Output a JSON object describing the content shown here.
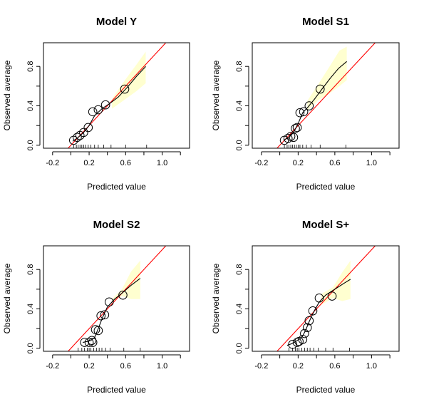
{
  "chart_data": [
    {
      "type": "line",
      "title": "Model Y",
      "xlabel": "Predicted value",
      "ylabel": "Observed average",
      "xlim": [
        -0.3,
        1.3
      ],
      "ylim": [
        -0.03,
        1.04
      ],
      "xticks": [
        "-0.2",
        "0.2",
        "0.6",
        "1.0"
      ],
      "yticks": [
        "0.0",
        "0.4",
        "0.8"
      ],
      "reference_line": {
        "color": "#ff0000",
        "intercept": 0,
        "slope": 1
      },
      "band": {
        "color": "#ffffd0",
        "x": [
          0.45,
          0.6,
          0.72,
          0.82
        ],
        "lower": [
          0.37,
          0.47,
          0.55,
          0.63
        ],
        "upper": [
          0.47,
          0.67,
          0.82,
          0.95
        ]
      },
      "smooth_curve": {
        "x": [
          0.02,
          0.08,
          0.14,
          0.2,
          0.26,
          0.34,
          0.42,
          0.52,
          0.62,
          0.72,
          0.82
        ],
        "y": [
          0.04,
          0.08,
          0.13,
          0.2,
          0.3,
          0.37,
          0.42,
          0.49,
          0.59,
          0.7,
          0.8
        ]
      },
      "points": {
        "x": [
          0.03,
          0.07,
          0.1,
          0.14,
          0.19,
          0.24,
          0.3,
          0.38,
          0.59
        ],
        "y": [
          0.05,
          0.08,
          0.1,
          0.13,
          0.18,
          0.34,
          0.36,
          0.41,
          0.57
        ]
      },
      "rug": [
        0.03,
        0.06,
        0.08,
        0.1,
        0.12,
        0.14,
        0.16,
        0.19,
        0.22,
        0.26,
        0.3,
        0.36,
        0.44,
        0.6,
        0.83
      ]
    },
    {
      "type": "line",
      "title": "Model S1",
      "xlabel": "Predicted value",
      "ylabel": "Observed average",
      "xlim": [
        -0.3,
        1.3
      ],
      "ylim": [
        -0.03,
        1.04
      ],
      "xticks": [
        "-0.2",
        "0.2",
        "0.6",
        "1.0"
      ],
      "yticks": [
        "0.0",
        "0.4",
        "0.8"
      ],
      "reference_line": {
        "color": "#ff0000",
        "intercept": 0,
        "slope": 1
      },
      "band": {
        "color": "#ffffd0",
        "x": [
          0.3,
          0.42,
          0.55,
          0.65,
          0.73
        ],
        "lower": [
          0.35,
          0.46,
          0.53,
          0.6,
          0.66
        ],
        "upper": [
          0.45,
          0.62,
          0.81,
          0.96,
          1.0
        ]
      },
      "smooth_curve": {
        "x": [
          0.04,
          0.1,
          0.15,
          0.2,
          0.25,
          0.31,
          0.38,
          0.46,
          0.55,
          0.64,
          0.73
        ],
        "y": [
          0.05,
          0.08,
          0.13,
          0.22,
          0.33,
          0.39,
          0.47,
          0.57,
          0.68,
          0.78,
          0.85
        ]
      },
      "points": {
        "x": [
          0.05,
          0.09,
          0.12,
          0.15,
          0.17,
          0.19,
          0.22,
          0.26,
          0.32,
          0.44
        ],
        "y": [
          0.05,
          0.07,
          0.09,
          0.08,
          0.17,
          0.18,
          0.33,
          0.34,
          0.4,
          0.57
        ]
      },
      "rug": [
        0.05,
        0.08,
        0.1,
        0.12,
        0.14,
        0.16,
        0.18,
        0.2,
        0.22,
        0.25,
        0.29,
        0.34,
        0.44,
        0.72
      ]
    },
    {
      "type": "line",
      "title": "Model S2",
      "xlabel": "Predicted value",
      "ylabel": "Observed average",
      "xlim": [
        -0.3,
        1.3
      ],
      "ylim": [
        -0.03,
        1.04
      ],
      "xticks": [
        "-0.2",
        "0.2",
        "0.6",
        "1.0"
      ],
      "yticks": [
        "0.0",
        "0.4",
        "0.8"
      ],
      "reference_line": {
        "color": "#ff0000",
        "intercept": 0,
        "slope": 1
      },
      "band": {
        "color": "#ffffd0",
        "x": [
          0.45,
          0.56,
          0.66,
          0.76
        ],
        "lower": [
          0.47,
          0.53,
          0.5,
          0.5
        ],
        "upper": [
          0.5,
          0.6,
          0.78,
          0.89
        ]
      },
      "smooth_curve": {
        "x": [
          0.13,
          0.18,
          0.22,
          0.26,
          0.3,
          0.35,
          0.4,
          0.48,
          0.56,
          0.66,
          0.76
        ],
        "y": [
          0.06,
          0.07,
          0.08,
          0.11,
          0.2,
          0.32,
          0.42,
          0.5,
          0.56,
          0.64,
          0.71
        ]
      },
      "points": {
        "x": [
          0.15,
          0.2,
          0.23,
          0.24,
          0.27,
          0.3,
          0.33,
          0.37,
          0.42,
          0.57
        ],
        "y": [
          0.06,
          0.06,
          0.08,
          0.06,
          0.19,
          0.18,
          0.33,
          0.34,
          0.47,
          0.54
        ]
      },
      "rug": [
        0.08,
        0.12,
        0.15,
        0.18,
        0.2,
        0.22,
        0.25,
        0.28,
        0.31,
        0.34,
        0.38,
        0.43,
        0.58,
        0.76
      ]
    },
    {
      "type": "line",
      "title": "Model S+",
      "xlabel": "Predicted value",
      "ylabel": "Observed average",
      "xlim": [
        -0.3,
        1.3
      ],
      "ylim": [
        -0.03,
        1.04
      ],
      "xticks": [
        "-0.2",
        "0.2",
        "0.6",
        "1.0"
      ],
      "yticks": [
        "0.0",
        "0.4",
        "0.8"
      ],
      "reference_line": {
        "color": "#ff0000",
        "intercept": 0,
        "slope": 1
      },
      "band": {
        "color": "#ffffd0",
        "x": [
          0.45,
          0.58,
          0.68,
          0.77
        ],
        "lower": [
          0.44,
          0.51,
          0.48,
          0.5
        ],
        "upper": [
          0.55,
          0.62,
          0.77,
          0.89
        ]
      },
      "smooth_curve": {
        "x": [
          0.08,
          0.14,
          0.19,
          0.24,
          0.28,
          0.32,
          0.37,
          0.43,
          0.5,
          0.6,
          0.7,
          0.77
        ],
        "y": [
          0.03,
          0.05,
          0.08,
          0.11,
          0.18,
          0.27,
          0.37,
          0.47,
          0.54,
          0.6,
          0.66,
          0.7
        ]
      },
      "points": {
        "x": [
          0.14,
          0.19,
          0.21,
          0.25,
          0.27,
          0.3,
          0.32,
          0.36,
          0.43,
          0.57
        ],
        "y": [
          0.04,
          0.06,
          0.07,
          0.09,
          0.15,
          0.21,
          0.28,
          0.38,
          0.51,
          0.53
        ]
      },
      "rug": [
        0.1,
        0.14,
        0.17,
        0.19,
        0.21,
        0.24,
        0.27,
        0.3,
        0.33,
        0.37,
        0.42,
        0.5,
        0.58,
        0.76
      ]
    }
  ]
}
